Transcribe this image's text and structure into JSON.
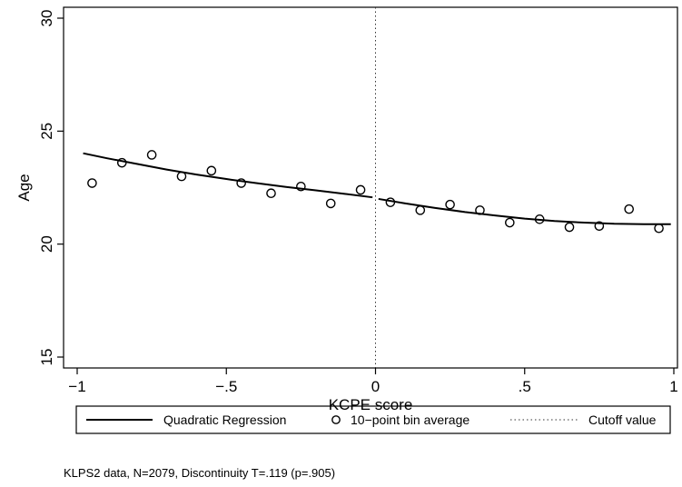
{
  "chart_data": {
    "type": "scatter",
    "title": "",
    "xlabel": "KCPE score",
    "ylabel": "Age",
    "xlim": [
      -1,
      1
    ],
    "ylim": [
      15,
      30
    ],
    "x_ticks": [
      -1,
      -0.5,
      0,
      0.5,
      1
    ],
    "x_tick_labels": [
      "−1",
      "−.5",
      "0",
      ".5",
      "1"
    ],
    "y_ticks": [
      15,
      20,
      25,
      30
    ],
    "y_tick_labels": [
      "15",
      "20",
      "25",
      "30"
    ],
    "grid": false,
    "cutoff": 0,
    "series": [
      {
        "name": "Quadratic Regression",
        "kind": "line",
        "x": [
          -0.98,
          -0.9,
          -0.8,
          -0.7,
          -0.6,
          -0.5,
          -0.4,
          -0.3,
          -0.2,
          -0.1,
          -0.01,
          0.01,
          0.1,
          0.2,
          0.3,
          0.4,
          0.5,
          0.6,
          0.7,
          0.8,
          0.9,
          0.99
        ],
        "y": [
          24.02,
          23.8,
          23.55,
          23.3,
          23.08,
          22.88,
          22.7,
          22.53,
          22.38,
          22.22,
          22.07,
          22.0,
          21.8,
          21.6,
          21.42,
          21.27,
          21.13,
          21.02,
          20.95,
          20.9,
          20.88,
          20.88
        ]
      },
      {
        "name": "10−point bin average",
        "kind": "scatter",
        "x": [
          -0.95,
          -0.85,
          -0.75,
          -0.65,
          -0.55,
          -0.45,
          -0.35,
          -0.25,
          -0.15,
          -0.05,
          0.05,
          0.15,
          0.25,
          0.35,
          0.45,
          0.55,
          0.65,
          0.75,
          0.85,
          0.95
        ],
        "y": [
          22.7,
          23.6,
          23.95,
          23.0,
          23.25,
          22.7,
          22.25,
          22.55,
          21.8,
          22.4,
          21.85,
          21.5,
          21.75,
          21.5,
          20.95,
          21.1,
          20.75,
          20.8,
          21.55,
          20.7
        ]
      },
      {
        "name": "Cutoff value",
        "kind": "vline",
        "x": [
          0
        ]
      }
    ],
    "legend_position": "bottom",
    "note": "KLPS2 data, N=2079, Discontinuity T=.119 (p=.905)"
  }
}
